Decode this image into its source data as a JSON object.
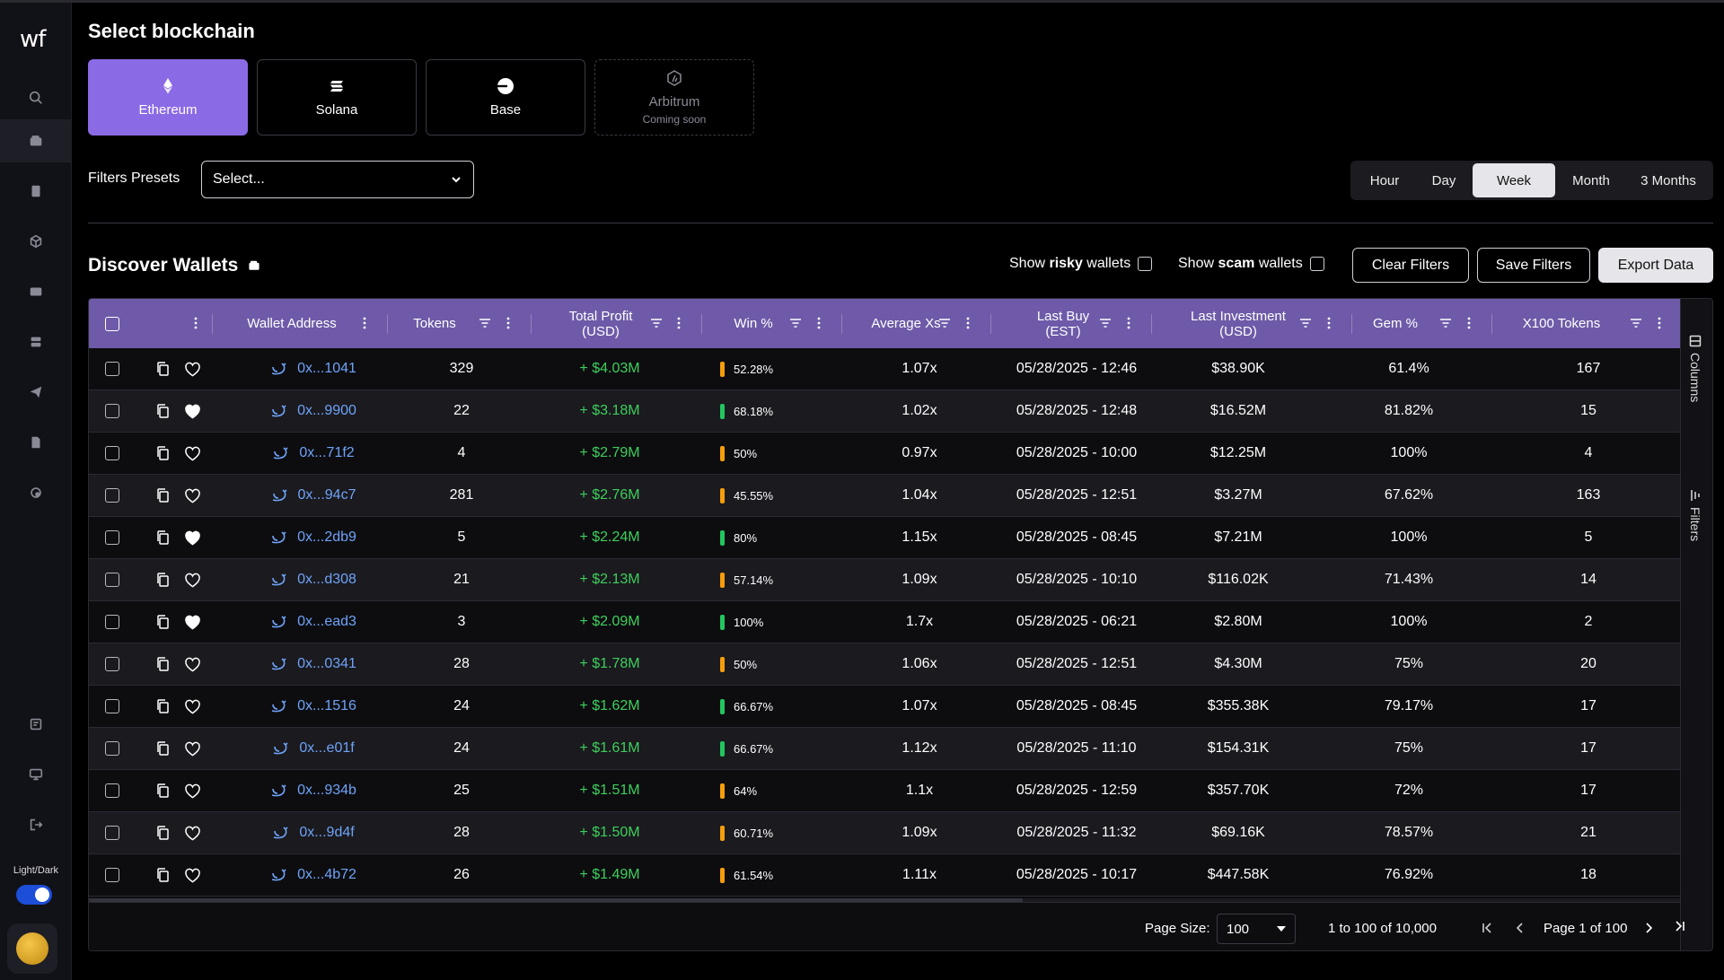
{
  "brand": {
    "logo": "wf"
  },
  "sidebar": {
    "toggle_label": "Light/Dark"
  },
  "page": {
    "title": "Select blockchain"
  },
  "chains": [
    {
      "label": "Ethereum",
      "sub": "",
      "state": "active",
      "icon": "ethereum-icon"
    },
    {
      "label": "Solana",
      "sub": "",
      "state": "normal",
      "icon": "solana-icon"
    },
    {
      "label": "Base",
      "sub": "",
      "state": "normal",
      "icon": "base-icon"
    },
    {
      "label": "Arbitrum",
      "sub": "Coming soon",
      "state": "disabled",
      "icon": "arbitrum-icon"
    }
  ],
  "filters": {
    "presets_label": "Filters Presets",
    "presets_value": "Select..."
  },
  "timeframes": [
    {
      "label": "Hour",
      "active": false
    },
    {
      "label": "Day",
      "active": false
    },
    {
      "label": "Week",
      "active": true
    },
    {
      "label": "Month",
      "active": false
    },
    {
      "label": "3 Months",
      "active": false
    }
  ],
  "discover": {
    "title": "Discover Wallets",
    "risky_prefix": "Show ",
    "risky_bold": "risky",
    "risky_suffix": " wallets",
    "scam_prefix": "Show ",
    "scam_bold": "scam",
    "scam_suffix": " wallets",
    "clear": "Clear Filters",
    "save": "Save Filters",
    "export": "Export Data"
  },
  "table": {
    "columns": {
      "wallet": "Wallet Address",
      "tokens": "Tokens",
      "profit_1": "Total Profit",
      "profit_2": "(USD)",
      "win": "Win %",
      "avgxs": "Average Xs",
      "lastbuy_1": "Last Buy",
      "lastbuy_2": "(EST)",
      "lastinv_1": "Last Investment",
      "lastinv_2": "(USD)",
      "gem": "Gem %",
      "x100": "X100 Tokens"
    },
    "rows": [
      {
        "addr": "0x...1041",
        "fav": false,
        "tokens": "329",
        "profit": "+ $4.03M",
        "win": "52.28%",
        "win_color": "#f59e0b",
        "avg": "1.07x",
        "last_buy": "05/28/2025 - 12:46",
        "last_inv": "$38.90K",
        "gem": "61.4%",
        "x100": "167"
      },
      {
        "addr": "0x...9900",
        "fav": true,
        "tokens": "22",
        "profit": "+ $3.18M",
        "win": "68.18%",
        "win_color": "#22c55e",
        "avg": "1.02x",
        "last_buy": "05/28/2025 - 12:48",
        "last_inv": "$16.52M",
        "gem": "81.82%",
        "x100": "15"
      },
      {
        "addr": "0x...71f2",
        "fav": false,
        "tokens": "4",
        "profit": "+ $2.79M",
        "win": "50%",
        "win_color": "#f59e0b",
        "avg": "0.97x",
        "last_buy": "05/28/2025 - 10:00",
        "last_inv": "$12.25M",
        "gem": "100%",
        "x100": "4"
      },
      {
        "addr": "0x...94c7",
        "fav": false,
        "tokens": "281",
        "profit": "+ $2.76M",
        "win": "45.55%",
        "win_color": "#f59e0b",
        "avg": "1.04x",
        "last_buy": "05/28/2025 - 12:51",
        "last_inv": "$3.27M",
        "gem": "67.62%",
        "x100": "163"
      },
      {
        "addr": "0x...2db9",
        "fav": true,
        "tokens": "5",
        "profit": "+ $2.24M",
        "win": "80%",
        "win_color": "#22c55e",
        "avg": "1.15x",
        "last_buy": "05/28/2025 - 08:45",
        "last_inv": "$7.21M",
        "gem": "100%",
        "x100": "5"
      },
      {
        "addr": "0x...d308",
        "fav": false,
        "tokens": "21",
        "profit": "+ $2.13M",
        "win": "57.14%",
        "win_color": "#f59e0b",
        "avg": "1.09x",
        "last_buy": "05/28/2025 - 10:10",
        "last_inv": "$116.02K",
        "gem": "71.43%",
        "x100": "14"
      },
      {
        "addr": "0x...ead3",
        "fav": true,
        "tokens": "3",
        "profit": "+ $2.09M",
        "win": "100%",
        "win_color": "#22c55e",
        "avg": "1.7x",
        "last_buy": "05/28/2025 - 06:21",
        "last_inv": "$2.80M",
        "gem": "100%",
        "x100": "2"
      },
      {
        "addr": "0x...0341",
        "fav": false,
        "tokens": "28",
        "profit": "+ $1.78M",
        "win": "50%",
        "win_color": "#f59e0b",
        "avg": "1.06x",
        "last_buy": "05/28/2025 - 12:51",
        "last_inv": "$4.30M",
        "gem": "75%",
        "x100": "20"
      },
      {
        "addr": "0x...1516",
        "fav": false,
        "tokens": "24",
        "profit": "+ $1.62M",
        "win": "66.67%",
        "win_color": "#22c55e",
        "avg": "1.07x",
        "last_buy": "05/28/2025 - 08:45",
        "last_inv": "$355.38K",
        "gem": "79.17%",
        "x100": "17"
      },
      {
        "addr": "0x...e01f",
        "fav": false,
        "tokens": "24",
        "profit": "+ $1.61M",
        "win": "66.67%",
        "win_color": "#22c55e",
        "avg": "1.12x",
        "last_buy": "05/28/2025 - 11:10",
        "last_inv": "$154.31K",
        "gem": "75%",
        "x100": "17"
      },
      {
        "addr": "0x...934b",
        "fav": false,
        "tokens": "25",
        "profit": "+ $1.51M",
        "win": "64%",
        "win_color": "#f59e0b",
        "avg": "1.1x",
        "last_buy": "05/28/2025 - 12:59",
        "last_inv": "$357.70K",
        "gem": "72%",
        "x100": "17"
      },
      {
        "addr": "0x...9d4f",
        "fav": false,
        "tokens": "28",
        "profit": "+ $1.50M",
        "win": "60.71%",
        "win_color": "#f59e0b",
        "avg": "1.09x",
        "last_buy": "05/28/2025 - 11:32",
        "last_inv": "$69.16K",
        "gem": "78.57%",
        "x100": "21"
      },
      {
        "addr": "0x...4b72",
        "fav": false,
        "tokens": "26",
        "profit": "+ $1.49M",
        "win": "61.54%",
        "win_color": "#f59e0b",
        "avg": "1.11x",
        "last_buy": "05/28/2025 - 10:17",
        "last_inv": "$447.58K",
        "gem": "76.92%",
        "x100": "18"
      }
    ]
  },
  "side_panel": {
    "columns": "Columns",
    "filters": "Filters"
  },
  "pagination": {
    "page_size_label": "Page Size:",
    "page_size": "100",
    "range": "1 to 100 of 10,000",
    "page": "Page 1 of 100"
  },
  "colors": {
    "accent": "#8b6ae6",
    "header": "#6e5aa8",
    "profit": "#3ecf5c",
    "link": "#6fa3f7"
  }
}
